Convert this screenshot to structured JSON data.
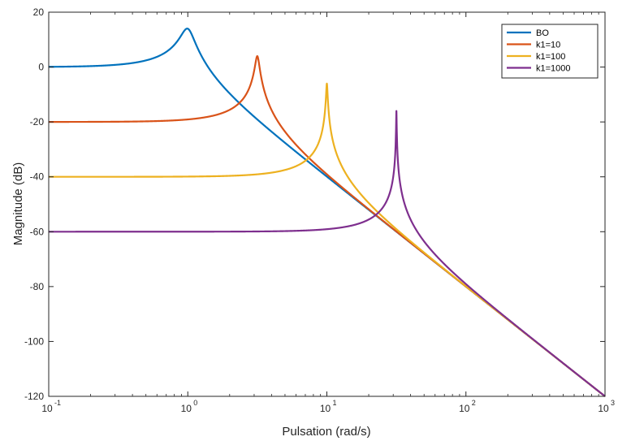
{
  "chart_data": {
    "type": "line",
    "xlabel": "Pulsation (rad/s)",
    "ylabel": "Magnitude (dB)",
    "xscale": "log",
    "xlim": [
      0.1,
      1000
    ],
    "ylim": [
      -120,
      20
    ],
    "x_ticks": [
      {
        "value": 0.1,
        "base": "10",
        "exp": "-1"
      },
      {
        "value": 1,
        "base": "10",
        "exp": "0"
      },
      {
        "value": 10,
        "base": "10",
        "exp": "1"
      },
      {
        "value": 100,
        "base": "10",
        "exp": "2"
      },
      {
        "value": 1000,
        "base": "10",
        "exp": "3"
      }
    ],
    "y_ticks": [
      20,
      0,
      -20,
      -40,
      -60,
      -80,
      -100,
      -120
    ],
    "y_tick_labels": [
      "20",
      "0",
      "-20",
      "-40",
      "-60",
      "-80",
      "-100",
      "-120"
    ],
    "grid": false,
    "legend_position": "top-right",
    "series": [
      {
        "name": "BO",
        "color": "#0072BD",
        "k": 1,
        "zeta": 0.1
      },
      {
        "name": "k1=10",
        "color": "#D95319",
        "k": 10,
        "zeta": 0.0316
      },
      {
        "name": "k1=100",
        "color": "#EDB120",
        "k": 100,
        "zeta": 0.01
      },
      {
        "name": "k1=1000",
        "color": "#7E2F8E",
        "k": 1000,
        "zeta": 0.00316
      }
    ],
    "curve_model": "20*log10(1/|k - w^2 + 2*zeta*sqrt(k)*w*j|)"
  }
}
